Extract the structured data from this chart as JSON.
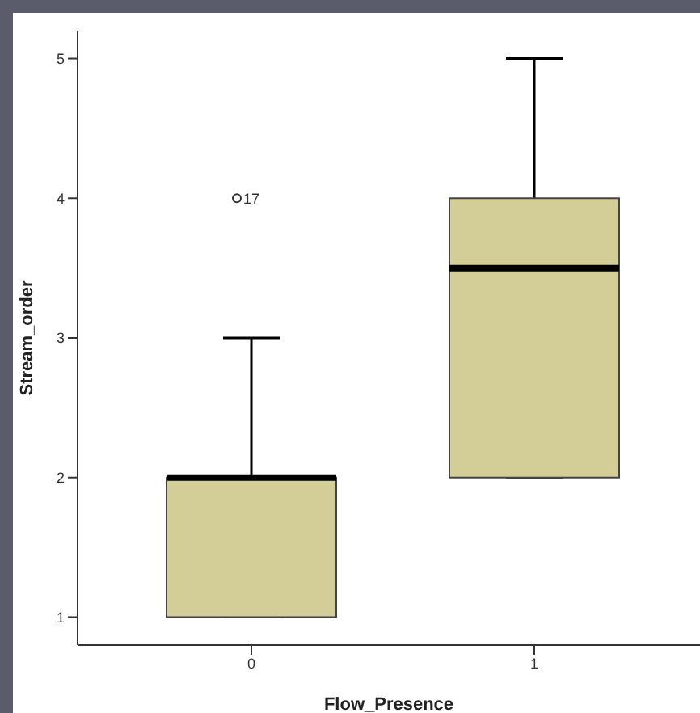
{
  "chart_data": {
    "type": "box",
    "xlabel": "Flow_Presence",
    "ylabel": "Stream_order",
    "categories": [
      "0",
      "1"
    ],
    "color": "#d3ce98",
    "boxes": [
      {
        "low": 1,
        "q1": 1,
        "median": 2,
        "q3": 2,
        "high": 3,
        "outliers": [
          4
        ]
      },
      {
        "low": 2,
        "q1": 2,
        "median": 3.5,
        "q3": 4,
        "high": 5
      }
    ],
    "annotations": [
      "17"
    ],
    "ylim": [
      0.8,
      5.2
    ],
    "yticks": [
      1,
      2,
      3,
      4,
      5
    ],
    "grid": false
  }
}
